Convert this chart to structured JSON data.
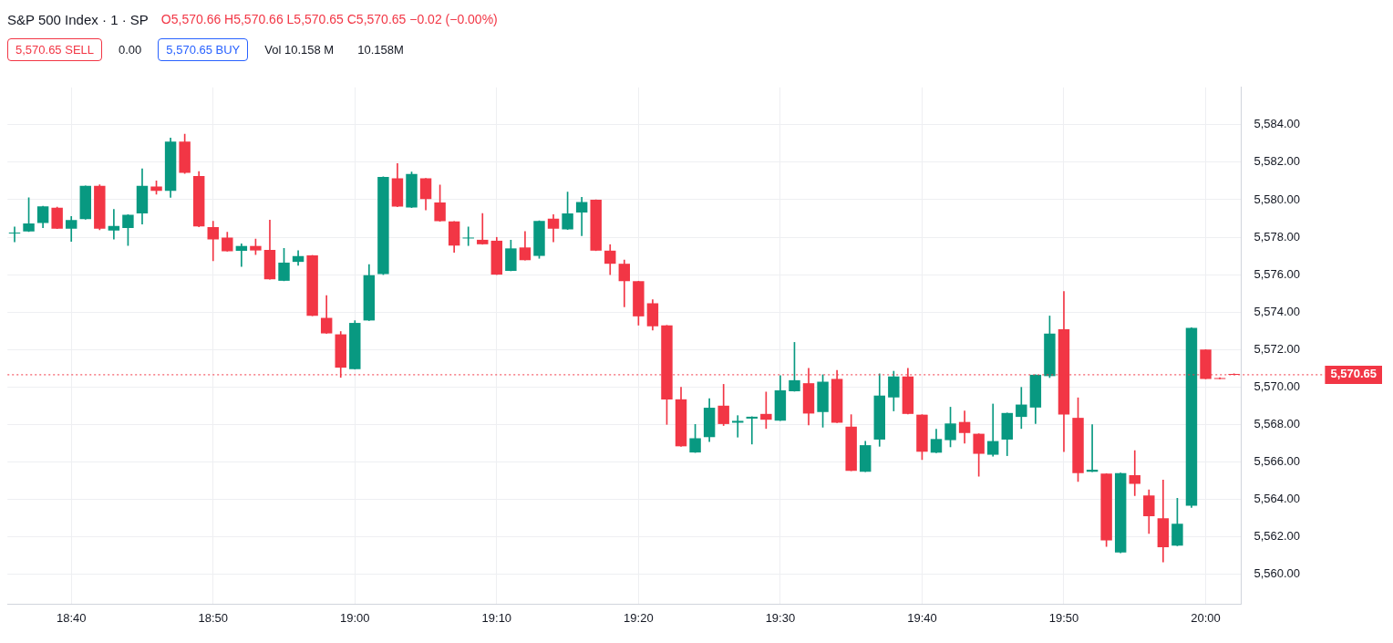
{
  "chart_data": {
    "type": "candlestick",
    "title": "S&P 500 Index · 1 · SP",
    "annotations": [
      "O5,570.66 H5,570.66 L5,570.65 C5,570.65 −0.02 (−0.00%)",
      "5,570.65 SELL",
      "0.00",
      "5,570.65 BUY",
      "Vol 10.158 M",
      "10.158M"
    ],
    "categories": [
      null,
      null,
      null,
      null,
      "18:40",
      null,
      null,
      null,
      null,
      null,
      null,
      null,
      null,
      null,
      "18:50",
      null,
      null,
      null,
      null,
      null,
      null,
      null,
      null,
      null,
      "19:00",
      null,
      null,
      null,
      null,
      null,
      null,
      null,
      null,
      null,
      "19:10",
      null,
      null,
      null,
      null,
      null,
      null,
      null,
      null,
      null,
      "19:20",
      null,
      null,
      null,
      null,
      null,
      null,
      null,
      null,
      null,
      "19:30",
      null,
      null,
      null,
      null,
      null,
      null,
      null,
      null,
      null,
      "19:40",
      null,
      null,
      null,
      null,
      null,
      null,
      null,
      null,
      null,
      "19:50",
      null,
      null,
      null,
      null,
      null,
      null,
      null,
      null,
      null,
      "20:00",
      null,
      null
    ],
    "ohlc": [
      [
        5578.2,
        5578.55,
        5577.75,
        5578.25
      ],
      [
        5578.3,
        5580.1,
        5578.3,
        5578.73
      ],
      [
        5578.76,
        5579.65,
        5578.5,
        5579.65
      ],
      [
        5579.57,
        5579.6,
        5578.45,
        5578.45
      ],
      [
        5578.45,
        5579.1,
        5577.78,
        5578.91
      ],
      [
        5578.96,
        5580.74,
        5578.96,
        5580.74
      ],
      [
        5580.74,
        5580.8,
        5578.4,
        5578.45
      ],
      [
        5578.36,
        5579.48,
        5577.9,
        5578.6
      ],
      [
        5578.49,
        5579.2,
        5577.55,
        5579.2
      ],
      [
        5579.27,
        5581.65,
        5578.7,
        5580.74
      ],
      [
        5580.7,
        5581.0,
        5580.29,
        5580.47
      ],
      [
        5580.47,
        5583.3,
        5580.13,
        5583.1
      ],
      [
        5583.1,
        5583.5,
        5581.4,
        5581.43
      ],
      [
        5581.27,
        5581.5,
        5578.55,
        5578.57
      ],
      [
        5578.54,
        5578.85,
        5576.74,
        5577.88
      ],
      [
        5577.98,
        5578.26,
        5577.25,
        5577.25
      ],
      [
        5577.27,
        5577.64,
        5576.44,
        5577.53
      ],
      [
        5577.53,
        5577.9,
        5577.07,
        5577.29
      ],
      [
        5577.32,
        5578.91,
        5575.75,
        5575.75
      ],
      [
        5575.67,
        5577.4,
        5575.67,
        5576.64
      ],
      [
        5576.68,
        5577.28,
        5576.5,
        5576.99
      ],
      [
        5577.03,
        5577.03,
        5573.8,
        5573.8
      ],
      [
        5573.69,
        5574.88,
        5572.86,
        5572.86
      ],
      [
        5572.81,
        5572.96,
        5570.51,
        5571.03
      ],
      [
        5570.95,
        5573.54,
        5570.95,
        5573.42
      ],
      [
        5573.55,
        5576.54,
        5573.55,
        5575.97
      ],
      [
        5576.03,
        5581.22,
        5576.0,
        5581.22
      ],
      [
        5581.14,
        5581.93,
        5579.63,
        5579.63
      ],
      [
        5579.58,
        5581.48,
        5579.58,
        5581.38
      ],
      [
        5581.14,
        5581.14,
        5579.46,
        5580.04
      ],
      [
        5579.85,
        5580.79,
        5578.85,
        5578.85
      ],
      [
        5578.84,
        5578.84,
        5577.19,
        5577.55
      ],
      [
        5577.93,
        5578.54,
        5577.55,
        5577.93
      ],
      [
        5577.86,
        5579.27,
        5577.62,
        5577.62
      ],
      [
        5577.81,
        5577.99,
        5576.0,
        5576.0
      ],
      [
        5576.2,
        5577.84,
        5576.2,
        5577.4
      ],
      [
        5577.45,
        5578.3,
        5576.77,
        5576.77
      ],
      [
        5577.0,
        5578.87,
        5576.87,
        5578.87
      ],
      [
        5578.99,
        5579.2,
        5577.75,
        5578.45
      ],
      [
        5578.41,
        5580.41,
        5578.41,
        5579.27
      ],
      [
        5579.32,
        5580.13,
        5578.08,
        5579.88
      ],
      [
        5580.0,
        5580.0,
        5577.28,
        5577.28
      ],
      [
        5577.28,
        5577.6,
        5576.0,
        5576.58
      ],
      [
        5576.58,
        5576.78,
        5574.28,
        5575.65
      ],
      [
        5575.65,
        5575.65,
        5573.3,
        5573.77
      ],
      [
        5574.47,
        5574.66,
        5573.04,
        5573.24
      ],
      [
        5573.29,
        5573.29,
        5568.0,
        5569.33
      ],
      [
        5569.34,
        5569.99,
        5566.83,
        5566.83
      ],
      [
        5566.5,
        5568.0,
        5566.5,
        5567.26
      ],
      [
        5567.32,
        5569.37,
        5567.08,
        5568.89
      ],
      [
        5569.0,
        5570.14,
        5567.94,
        5568.02
      ],
      [
        5568.09,
        5568.47,
        5567.32,
        5568.19
      ],
      [
        5568.31,
        5568.41,
        5566.95,
        5568.41
      ],
      [
        5568.56,
        5569.73,
        5567.78,
        5568.25
      ],
      [
        5568.2,
        5570.6,
        5568.2,
        5569.82
      ],
      [
        5569.77,
        5572.38,
        5569.77,
        5570.36
      ],
      [
        5570.2,
        5571.0,
        5567.97,
        5568.58
      ],
      [
        5568.66,
        5570.65,
        5567.85,
        5570.28
      ],
      [
        5570.43,
        5570.89,
        5568.09,
        5568.09
      ],
      [
        5567.88,
        5568.52,
        5565.52,
        5565.52
      ],
      [
        5565.47,
        5567.1,
        5565.47,
        5566.89
      ],
      [
        5567.19,
        5570.7,
        5566.83,
        5569.54
      ],
      [
        5569.44,
        5570.84,
        5568.72,
        5570.56
      ],
      [
        5570.56,
        5571.0,
        5568.56,
        5568.56
      ],
      [
        5568.52,
        5568.52,
        5566.12,
        5566.54
      ],
      [
        5566.49,
        5567.74,
        5566.49,
        5567.22
      ],
      [
        5567.16,
        5568.92,
        5566.8,
        5568.05
      ],
      [
        5568.13,
        5568.72,
        5567.0,
        5567.54
      ],
      [
        5567.5,
        5567.5,
        5565.23,
        5566.43
      ],
      [
        5566.38,
        5569.09,
        5566.3,
        5567.11
      ],
      [
        5567.19,
        5568.61,
        5566.33,
        5568.61
      ],
      [
        5568.4,
        5569.98,
        5567.78,
        5569.06
      ],
      [
        5568.9,
        5570.65,
        5568.05,
        5570.65
      ],
      [
        5570.58,
        5573.79,
        5570.5,
        5572.85
      ],
      [
        5573.08,
        5575.1,
        5566.55,
        5568.53
      ],
      [
        5568.35,
        5569.42,
        5564.95,
        5565.4
      ],
      [
        5565.47,
        5567.99,
        5565.47,
        5565.58
      ],
      [
        5565.37,
        5565.37,
        5561.48,
        5561.8
      ],
      [
        5561.16,
        5565.4,
        5561.14,
        5565.4
      ],
      [
        5565.29,
        5566.6,
        5564.2,
        5564.83
      ],
      [
        5564.2,
        5564.5,
        5562.18,
        5563.1
      ],
      [
        5562.99,
        5565.03,
        5560.65,
        5561.44
      ],
      [
        5561.52,
        5564.06,
        5561.52,
        5562.7
      ],
      [
        5563.65,
        5573.16,
        5563.56,
        5573.16
      ],
      [
        5572.0,
        5572.0,
        5570.43,
        5570.43
      ],
      [
        5570.45,
        5570.5,
        5570.43,
        5570.43
      ],
      [
        5570.66,
        5570.66,
        5570.65,
        5570.65
      ]
    ],
    "colors": [
      "#089981",
      "#089981",
      "#089981",
      "#f23645",
      "#089981",
      "#089981",
      "#f23645",
      "#089981",
      "#089981",
      "#089981",
      "#f23645",
      "#089981",
      "#f23645",
      "#f23645",
      "#f23645",
      "#f23645",
      "#089981",
      "#f23645",
      "#f23645",
      "#089981",
      "#089981",
      "#f23645",
      "#f23645",
      "#f23645",
      "#089981",
      "#089981",
      "#089981",
      "#f23645",
      "#089981",
      "#f23645",
      "#f23645",
      "#f23645",
      "#089981",
      "#f23645",
      "#f23645",
      "#089981",
      "#f23645",
      "#089981",
      "#f23645",
      "#089981",
      "#089981",
      "#f23645",
      "#f23645",
      "#f23645",
      "#f23645",
      "#f23645",
      "#f23645",
      "#f23645",
      "#089981",
      "#089981",
      "#f23645",
      "#089981",
      "#089981",
      "#f23645",
      "#089981",
      "#089981",
      "#f23645",
      "#089981",
      "#f23645",
      "#f23645",
      "#089981",
      "#089981",
      "#089981",
      "#f23645",
      "#f23645",
      "#089981",
      "#089981",
      "#f23645",
      "#f23645",
      "#089981",
      "#089981",
      "#089981",
      "#089981",
      "#089981",
      "#f23645",
      "#f23645",
      "#089981",
      "#f23645",
      "#089981",
      "#f23645",
      "#f23645",
      "#f23645",
      "#089981",
      "#089981",
      "#f23645",
      "#f23645",
      "#f23645"
    ],
    "ylim": [
      5558.4,
      5586
    ],
    "yticks": [
      {
        "value": 5560,
        "label": "5,560.00"
      },
      {
        "value": 5562,
        "label": "5,562.00"
      },
      {
        "value": 5564,
        "label": "5,564.00"
      },
      {
        "value": 5566,
        "label": "5,566.00"
      },
      {
        "value": 5568,
        "label": "5,568.00"
      },
      {
        "value": 5570,
        "label": "5,570.00"
      },
      {
        "value": 5572,
        "label": "5,572.00"
      },
      {
        "value": 5574,
        "label": "5,574.00"
      },
      {
        "value": 5576,
        "label": "5,576.00"
      },
      {
        "value": 5578,
        "label": "5,578.00"
      },
      {
        "value": 5580,
        "label": "5,580.00"
      },
      {
        "value": 5582,
        "label": "5,582.00"
      },
      {
        "value": 5584,
        "label": "5,584.00"
      }
    ],
    "ref_lines": [
      {
        "axis": "y",
        "value": 5570.65,
        "label": "5,570.65",
        "color": "#f23645",
        "line_style": "dotted"
      }
    ],
    "grid": true,
    "legend": false
  }
}
